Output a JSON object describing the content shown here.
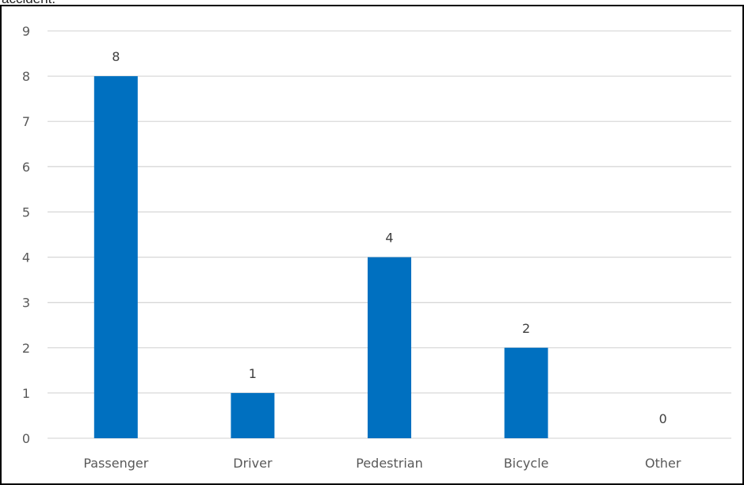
{
  "header_text": "accident.",
  "chart_data": {
    "type": "bar",
    "categories": [
      "Passenger",
      "Driver",
      "Pedestrian",
      "Bicycle",
      "Other"
    ],
    "values": [
      8,
      1,
      4,
      2,
      0
    ],
    "title": "",
    "xlabel": "",
    "ylabel": "",
    "ylim": [
      0,
      9
    ],
    "yticks": [
      0,
      1,
      2,
      3,
      4,
      5,
      6,
      7,
      8,
      9
    ],
    "grid": true,
    "legend": "none",
    "data_labels": true,
    "colors": {
      "bar": "#0070C0",
      "grid": "#D9D9D9",
      "axis": "#D9D9D9"
    }
  }
}
